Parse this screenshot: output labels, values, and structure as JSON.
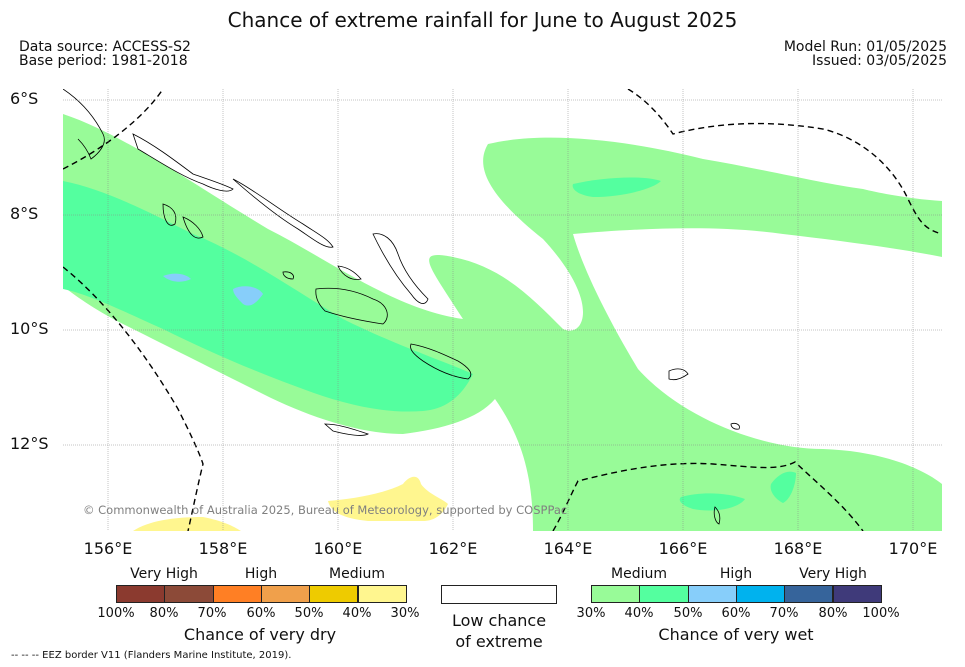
{
  "title": "Chance of extreme rainfall for June to August 2025",
  "meta": {
    "data_source": "Data source: ACCESS-S2",
    "base_period": "Base period: 1981-2018",
    "model_run": "Model Run: 01/05/2025",
    "issued": "Issued: 03/05/2025"
  },
  "axes": {
    "lat_labels": [
      "6°S",
      "8°S",
      "10°S",
      "12°S"
    ],
    "lon_labels": [
      "156°E",
      "158°E",
      "160°E",
      "162°E",
      "164°E",
      "166°E",
      "168°E",
      "170°E"
    ]
  },
  "copyright": "© Commonwealth of Australia 2025, Bureau of Meteorology, supported by COSPPac",
  "legend": {
    "dry": {
      "categories": [
        "Very High",
        "High",
        "Medium"
      ],
      "ticks": [
        "100%",
        "80%",
        "70%",
        "60%",
        "50%",
        "40%",
        "30%"
      ],
      "colors": [
        "#8b3a2f",
        "#8c4a38",
        "#ff7f24",
        "#f0a04b",
        "#eecb00",
        "#fff68f"
      ],
      "caption": "Chance of very dry"
    },
    "low": {
      "caption_line1": "Low chance",
      "caption_line2": "of extreme"
    },
    "wet": {
      "categories": [
        "Medium",
        "High",
        "Very High"
      ],
      "ticks": [
        "30%",
        "40%",
        "50%",
        "60%",
        "70%",
        "80%",
        "100%"
      ],
      "colors": [
        "#98fb98",
        "#54ff9f",
        "#87cefa",
        "#00b2ee",
        "#36649b",
        "#3f3a7a"
      ],
      "caption": "Chance of very wet"
    }
  },
  "footnote": "-- -- -- EEZ border V11 (Flanders Marine Institute, 2019)."
}
